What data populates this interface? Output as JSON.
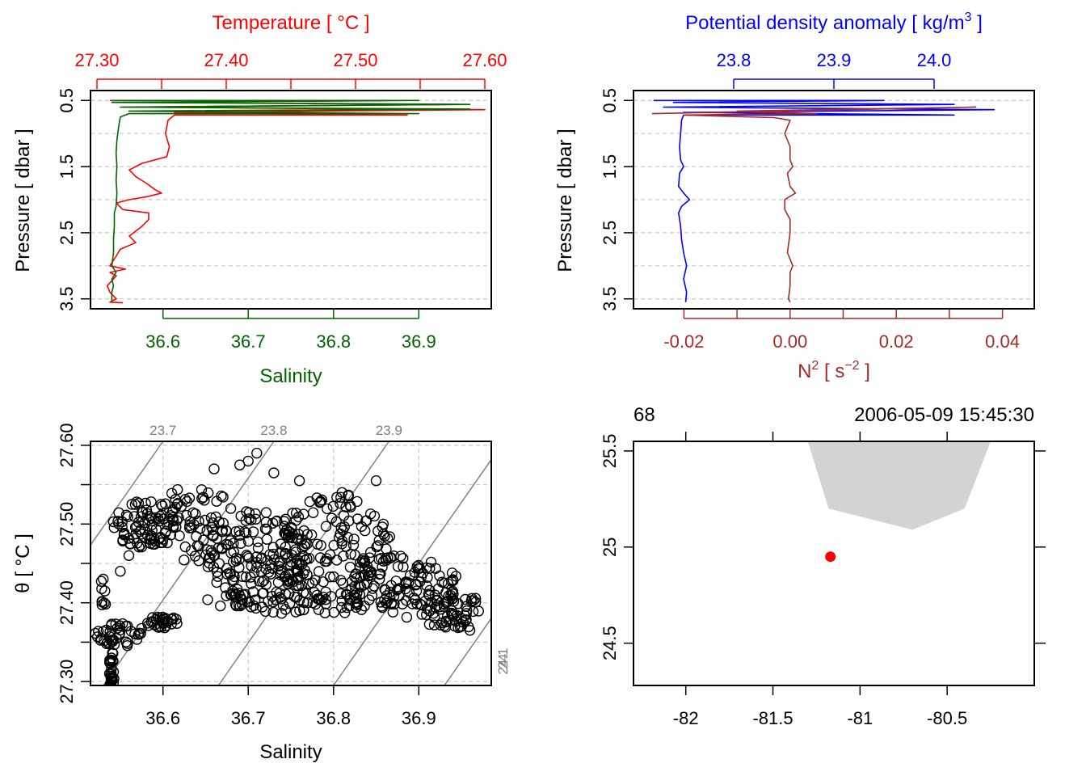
{
  "colors": {
    "temperature": "#ff0000",
    "salinity": "#006400",
    "sigma": "#0000ff",
    "n2": "#a52a2a",
    "black": "#000000",
    "grid": "#c8c8c8",
    "isopycnal": "#808080",
    "land": "#d3d3d3",
    "station": "#ff0000"
  },
  "chart_data": [
    {
      "id": "ts-profile",
      "type": "line",
      "title": "Temperature [ °C ]",
      "xlabel": "Salinity",
      "ylabel": "Pressure [ dbar ]",
      "ylim": [
        3.65,
        0.35
      ],
      "yticks": [
        0.5,
        1.5,
        2.5,
        3.5
      ],
      "ytick_labels": [
        "0.5",
        "1.5",
        "2.5",
        "3.5"
      ],
      "ygrid": [
        0.5,
        1.0,
        1.5,
        2.0,
        2.5,
        3.0,
        3.5
      ],
      "top_axis": {
        "name": "Temperature",
        "range": [
          27.295,
          27.605
        ],
        "ticks": [
          27.3,
          27.35,
          27.4,
          27.45,
          27.5,
          27.55,
          27.6
        ],
        "labels": [
          "27.30",
          "",
          "27.40",
          "",
          "27.50",
          "",
          "27.60"
        ]
      },
      "bottom_axis": {
        "name": "Salinity",
        "range": [
          36.515,
          36.985
        ],
        "ticks": [
          36.6,
          36.7,
          36.8,
          36.9
        ],
        "labels": [
          "36.6",
          "36.7",
          "36.8",
          "36.9"
        ]
      },
      "series": [
        {
          "name": "Temperature",
          "axis": "top",
          "points": [
            [
              27.31,
              0.5
            ],
            [
              27.52,
              0.5
            ],
            [
              27.35,
              0.53
            ],
            [
              27.58,
              0.56
            ],
            [
              27.32,
              0.6
            ],
            [
              27.6,
              0.64
            ],
            [
              27.36,
              0.68
            ],
            [
              27.54,
              0.72
            ],
            [
              27.36,
              0.72
            ],
            [
              27.355,
              0.8
            ],
            [
              27.353,
              1.0
            ],
            [
              27.356,
              1.2
            ],
            [
              27.354,
              1.35
            ],
            [
              27.335,
              1.45
            ],
            [
              27.325,
              1.55
            ],
            [
              27.33,
              1.65
            ],
            [
              27.338,
              1.75
            ],
            [
              27.345,
              1.85
            ],
            [
              27.35,
              1.9
            ],
            [
              27.34,
              1.95
            ],
            [
              27.325,
              2.0
            ],
            [
              27.315,
              2.05
            ],
            [
              27.32,
              2.15
            ],
            [
              27.34,
              2.2
            ],
            [
              27.34,
              2.3
            ],
            [
              27.335,
              2.4
            ],
            [
              27.325,
              2.55
            ],
            [
              27.33,
              2.65
            ],
            [
              27.318,
              2.75
            ],
            [
              27.315,
              2.85
            ],
            [
              27.31,
              3.0
            ],
            [
              27.322,
              3.05
            ],
            [
              27.31,
              3.1
            ],
            [
              27.315,
              3.15
            ],
            [
              27.308,
              3.3
            ],
            [
              27.31,
              3.4
            ],
            [
              27.315,
              3.5
            ],
            [
              27.31,
              3.55
            ],
            [
              27.32,
              3.56
            ]
          ]
        },
        {
          "name": "Salinity",
          "axis": "bottom",
          "points": [
            [
              36.54,
              0.5
            ],
            [
              36.9,
              0.5
            ],
            [
              36.54,
              0.53
            ],
            [
              36.96,
              0.56
            ],
            [
              36.55,
              0.6
            ],
            [
              36.96,
              0.63
            ],
            [
              36.56,
              0.66
            ],
            [
              36.9,
              0.7
            ],
            [
              36.56,
              0.7
            ],
            [
              36.55,
              0.75
            ],
            [
              36.548,
              0.9
            ],
            [
              36.546,
              1.1
            ],
            [
              36.545,
              1.3
            ],
            [
              36.546,
              1.5
            ],
            [
              36.545,
              1.7
            ],
            [
              36.546,
              1.9
            ],
            [
              36.545,
              2.1
            ],
            [
              36.543,
              2.2
            ],
            [
              36.543,
              2.4
            ],
            [
              36.542,
              2.6
            ],
            [
              36.542,
              2.8
            ],
            [
              36.54,
              3.0
            ],
            [
              36.545,
              3.1
            ],
            [
              36.54,
              3.2
            ],
            [
              36.542,
              3.3
            ],
            [
              36.54,
              3.4
            ],
            [
              36.54,
              3.5
            ],
            [
              36.54,
              3.55
            ]
          ]
        }
      ]
    },
    {
      "id": "density-profile",
      "type": "line",
      "title": "Potential density anomaly [ kg/m",
      "title_sup": "3",
      "title_end": " ]",
      "xlabel_base": "N",
      "xlabel_sup": "2",
      "xlabel_mid": " [ s",
      "xlabel_sup2": "−2",
      "xlabel_end": " ]",
      "ylabel": "Pressure [ dbar ]",
      "ylim": [
        3.65,
        0.35
      ],
      "yticks": [
        0.5,
        1.5,
        2.5,
        3.5
      ],
      "ytick_labels": [
        "0.5",
        "1.5",
        "2.5",
        "3.5"
      ],
      "ygrid": [
        0.5,
        1.0,
        1.5,
        2.0,
        2.5,
        3.0,
        3.5
      ],
      "top_axis": {
        "name": "Potential density anomaly",
        "range": [
          23.7,
          24.1
        ],
        "ticks": [
          23.8,
          23.9,
          24.0
        ],
        "labels": [
          "23.8",
          "23.9",
          "24.0"
        ]
      },
      "bottom_axis": {
        "name": "N2",
        "range": [
          -0.0295,
          0.046
        ],
        "ticks": [
          -0.02,
          -0.01,
          0.0,
          0.01,
          0.02,
          0.03,
          0.04
        ],
        "labels": [
          "-0.02",
          "",
          "0.00",
          "",
          "0.02",
          "",
          "0.04"
        ]
      },
      "series": [
        {
          "name": "Potential density anomaly",
          "axis": "top",
          "points": [
            [
              23.72,
              0.5
            ],
            [
              23.95,
              0.5
            ],
            [
              23.74,
              0.53
            ],
            [
              24.02,
              0.56
            ],
            [
              23.73,
              0.6
            ],
            [
              24.06,
              0.64
            ],
            [
              23.75,
              0.68
            ],
            [
              24.02,
              0.72
            ],
            [
              23.75,
              0.72
            ],
            [
              23.748,
              0.8
            ],
            [
              23.747,
              1.0
            ],
            [
              23.746,
              1.2
            ],
            [
              23.747,
              1.4
            ],
            [
              23.75,
              1.5
            ],
            [
              23.746,
              1.6
            ],
            [
              23.745,
              1.8
            ],
            [
              23.75,
              1.9
            ],
            [
              23.756,
              2.0
            ],
            [
              23.748,
              2.1
            ],
            [
              23.745,
              2.2
            ],
            [
              23.747,
              2.4
            ],
            [
              23.748,
              2.6
            ],
            [
              23.75,
              2.8
            ],
            [
              23.753,
              3.0
            ],
            [
              23.75,
              3.2
            ],
            [
              23.753,
              3.4
            ],
            [
              23.752,
              3.55
            ]
          ]
        },
        {
          "name": "N2",
          "axis": "bottom",
          "points": [
            [
              -0.026,
              0.7
            ],
            [
              0.035,
              0.6
            ],
            [
              -0.01,
              0.66
            ],
            [
              0.005,
              0.7
            ],
            [
              -0.02,
              0.72
            ],
            [
              -0.003,
              0.76
            ],
            [
              0.0,
              0.8
            ],
            [
              -0.001,
              1.0
            ],
            [
              0.0,
              1.2
            ],
            [
              0.0,
              1.4
            ],
            [
              0.0005,
              1.5
            ],
            [
              -0.0005,
              1.6
            ],
            [
              0.0,
              1.8
            ],
            [
              0.001,
              1.9
            ],
            [
              -0.001,
              2.0
            ],
            [
              -0.001,
              2.15
            ],
            [
              0.0,
              2.3
            ],
            [
              0.0,
              2.5
            ],
            [
              -0.0005,
              2.8
            ],
            [
              0.0005,
              3.0
            ],
            [
              0.0,
              3.1
            ],
            [
              0.0,
              3.3
            ],
            [
              -0.0003,
              3.5
            ],
            [
              0.0,
              3.55
            ]
          ]
        }
      ]
    },
    {
      "id": "ts-diagram",
      "type": "scatter",
      "xlabel": "Salinity",
      "ylabel": "θ [ °C ]",
      "xlim": [
        36.515,
        36.985
      ],
      "ylim": [
        27.295,
        27.605
      ],
      "xticks": [
        36.6,
        36.7,
        36.8,
        36.9
      ],
      "xtick_labels": [
        "36.6",
        "36.7",
        "36.8",
        "36.9"
      ],
      "yticks": [
        27.3,
        27.35,
        27.4,
        27.45,
        27.5,
        27.55,
        27.6
      ],
      "ytick_labels": [
        "27.30",
        "",
        "27.40",
        "",
        "27.50",
        "",
        "27.60"
      ],
      "isopycnals": [
        {
          "label": "23.7",
          "bottom_s": 36.4,
          "top_s": 36.6
        },
        {
          "label": "23.8",
          "bottom_s": 36.53,
          "top_s": 36.73
        },
        {
          "label": "23.9",
          "bottom_s": 36.665,
          "top_s": 36.865
        },
        {
          "label": "24",
          "bottom_s": 36.8,
          "top_s": 37.0
        },
        {
          "label": "24.1",
          "bottom_s": 36.93,
          "top_s": 37.13
        }
      ],
      "clusters": [
        {
          "s0": 36.54,
          "t0": 27.315,
          "ds": 0.003,
          "dt": 0.025,
          "n": 30
        },
        {
          "s0": 36.55,
          "t0": 27.36,
          "ds": 0.03,
          "dt": 0.015,
          "n": 40
        },
        {
          "s0": 36.6,
          "t0": 27.375,
          "ds": 0.02,
          "dt": 0.008,
          "n": 30
        },
        {
          "s0": 36.53,
          "t0": 27.41,
          "ds": 0.003,
          "dt": 0.03,
          "n": 8
        },
        {
          "s0": 36.58,
          "t0": 27.5,
          "ds": 0.04,
          "dt": 0.03,
          "n": 80
        },
        {
          "s0": 36.64,
          "t0": 27.5,
          "ds": 0.05,
          "dt": 0.05,
          "n": 70
        },
        {
          "s0": 36.71,
          "t0": 27.46,
          "ds": 0.06,
          "dt": 0.06,
          "n": 140
        },
        {
          "s0": 36.8,
          "t0": 27.47,
          "ds": 0.07,
          "dt": 0.07,
          "n": 150
        },
        {
          "s0": 36.88,
          "t0": 27.42,
          "ds": 0.07,
          "dt": 0.04,
          "n": 110
        },
        {
          "s0": 36.94,
          "t0": 27.39,
          "ds": 0.04,
          "dt": 0.025,
          "n": 50
        },
        {
          "s0": 36.76,
          "t0": 27.4,
          "ds": 0.12,
          "dt": 0.015,
          "n": 80
        }
      ],
      "points": [
        [
          36.66,
          27.57
        ],
        [
          36.7,
          27.58
        ],
        [
          36.71,
          27.59
        ],
        [
          36.73,
          27.565
        ],
        [
          36.76,
          27.555
        ],
        [
          36.69,
          27.575
        ],
        [
          36.56,
          27.46
        ],
        [
          36.55,
          27.44
        ],
        [
          36.53,
          27.43
        ],
        [
          36.96,
          27.365
        ],
        [
          36.95,
          27.38
        ],
        [
          36.85,
          27.555
        ],
        [
          36.81,
          27.54
        ]
      ]
    },
    {
      "id": "station-map",
      "type": "scatter",
      "top_labels": [
        "68",
        "2006-05-09 15:45:30"
      ],
      "xlim": [
        -82.3,
        -80.0
      ],
      "ylim": [
        24.28,
        25.55
      ],
      "xticks": [
        -82,
        -81.5,
        -81,
        -80.5
      ],
      "xtick_labels": [
        "-82",
        "-81.5",
        "-81",
        "-80.5"
      ],
      "yticks": [
        24.5,
        25,
        25.5
      ],
      "ytick_labels": [
        "24.5",
        "25",
        "25.5"
      ],
      "land": [
        [
          -81.3,
          25.55
        ],
        [
          -80.25,
          25.55
        ],
        [
          -80.4,
          25.2
        ],
        [
          -80.7,
          25.09
        ],
        [
          -81.18,
          25.2
        ]
      ],
      "station": {
        "lon": -81.17,
        "lat": 24.95
      }
    }
  ]
}
